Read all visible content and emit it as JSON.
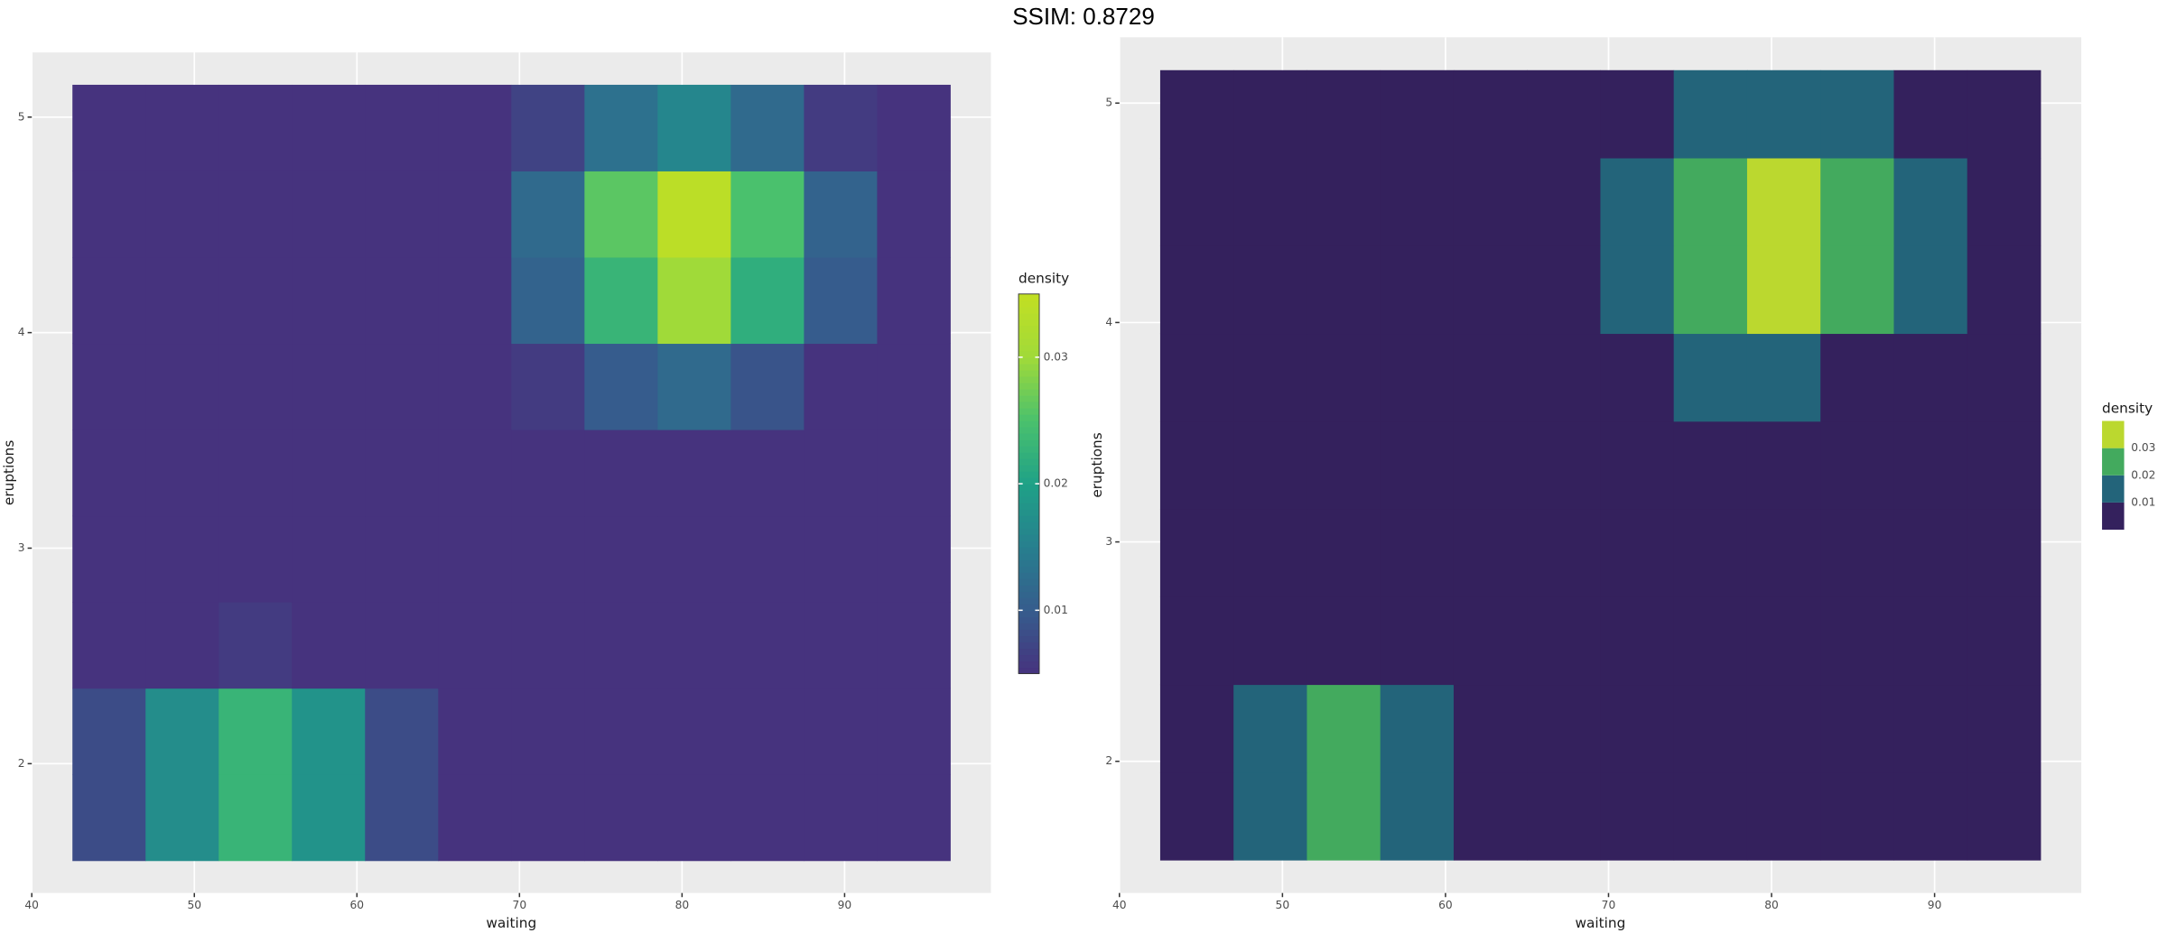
{
  "title": "SSIM: 0.8729",
  "chart_data": [
    {
      "type": "heatmap",
      "x_label": "waiting",
      "y_label": "eruptions",
      "legend_title": "density",
      "x": [
        44.75,
        49.25,
        53.75,
        58.25,
        62.75,
        67.25,
        71.75,
        76.25,
        80.75,
        85.25,
        89.75,
        94.25
      ],
      "y": [
        1.75,
        2.15,
        2.55,
        2.95,
        3.35,
        3.75,
        4.15,
        4.55,
        4.95
      ],
      "z": [
        [
          0.008,
          0.017,
          0.023,
          0.018,
          0.008,
          0.004,
          0.003,
          0.003,
          0.003,
          0.003,
          0.003,
          0.003
        ],
        [
          0.008,
          0.017,
          0.023,
          0.018,
          0.008,
          0.004,
          0.003,
          0.003,
          0.003,
          0.003,
          0.003,
          0.003
        ],
        [
          0.004,
          0.005,
          0.006,
          0.005,
          0.004,
          0.003,
          0.003,
          0.003,
          0.003,
          0.003,
          0.003,
          0.003
        ],
        [
          0.003,
          0.003,
          0.003,
          0.003,
          0.003,
          0.003,
          0.003,
          0.003,
          0.003,
          0.003,
          0.003,
          0.003
        ],
        [
          0.003,
          0.003,
          0.003,
          0.003,
          0.003,
          0.003,
          0.003,
          0.004,
          0.004,
          0.004,
          0.003,
          0.003
        ],
        [
          0.003,
          0.003,
          0.003,
          0.003,
          0.003,
          0.004,
          0.006,
          0.01,
          0.012,
          0.009,
          0.005,
          0.003
        ],
        [
          0.003,
          0.003,
          0.003,
          0.003,
          0.003,
          0.005,
          0.011,
          0.023,
          0.03,
          0.022,
          0.01,
          0.004
        ],
        [
          0.003,
          0.003,
          0.003,
          0.003,
          0.003,
          0.005,
          0.012,
          0.026,
          0.034,
          0.025,
          0.011,
          0.005
        ],
        [
          0.003,
          0.003,
          0.003,
          0.003,
          0.003,
          0.004,
          0.007,
          0.013,
          0.016,
          0.012,
          0.006,
          0.004
        ]
      ],
      "xlim": [
        40,
        99
      ],
      "ylim": [
        1.4,
        5.3
      ],
      "xticks": [
        40,
        50,
        60,
        70,
        80,
        90
      ],
      "yticks": [
        2,
        3,
        4,
        5
      ],
      "grid": true,
      "colorscale": "continuous",
      "colorlim": [
        0.005,
        0.035
      ],
      "colorticks": [
        0.01,
        0.02,
        0.03
      ],
      "palette": [
        "#46337e",
        "#365c8d",
        "#277f8e",
        "#1fa187",
        "#4ac16d",
        "#a0da39",
        "#c2df23"
      ]
    },
    {
      "type": "heatmap",
      "x_label": "waiting",
      "y_label": "eruptions",
      "legend_title": "density",
      "x": [
        44.75,
        49.25,
        53.75,
        58.25,
        62.75,
        67.25,
        71.75,
        76.25,
        80.75,
        85.25,
        89.75,
        94.25
      ],
      "y": [
        1.75,
        2.15,
        2.55,
        2.95,
        3.35,
        3.75,
        4.15,
        4.55,
        4.95
      ],
      "z": [
        [
          0.008,
          0.017,
          0.023,
          0.018,
          0.008,
          0.004,
          0.003,
          0.003,
          0.003,
          0.003,
          0.003,
          0.003
        ],
        [
          0.008,
          0.017,
          0.023,
          0.018,
          0.008,
          0.004,
          0.003,
          0.003,
          0.003,
          0.003,
          0.003,
          0.003
        ],
        [
          0.004,
          0.005,
          0.006,
          0.005,
          0.004,
          0.003,
          0.003,
          0.003,
          0.003,
          0.003,
          0.003,
          0.003
        ],
        [
          0.003,
          0.003,
          0.003,
          0.003,
          0.003,
          0.003,
          0.003,
          0.003,
          0.003,
          0.003,
          0.003,
          0.003
        ],
        [
          0.003,
          0.003,
          0.003,
          0.003,
          0.003,
          0.003,
          0.003,
          0.004,
          0.004,
          0.004,
          0.003,
          0.003
        ],
        [
          0.003,
          0.003,
          0.003,
          0.003,
          0.003,
          0.004,
          0.006,
          0.01,
          0.012,
          0.009,
          0.005,
          0.003
        ],
        [
          0.003,
          0.003,
          0.003,
          0.003,
          0.003,
          0.005,
          0.011,
          0.023,
          0.03,
          0.022,
          0.01,
          0.004
        ],
        [
          0.003,
          0.003,
          0.003,
          0.003,
          0.003,
          0.005,
          0.012,
          0.026,
          0.034,
          0.025,
          0.011,
          0.005
        ],
        [
          0.003,
          0.003,
          0.003,
          0.003,
          0.003,
          0.004,
          0.007,
          0.013,
          0.016,
          0.012,
          0.006,
          0.004
        ]
      ],
      "xlim": [
        40,
        99
      ],
      "ylim": [
        1.4,
        5.3
      ],
      "xticks": [
        40,
        50,
        60,
        70,
        80,
        90
      ],
      "yticks": [
        2,
        3,
        4,
        5
      ],
      "grid": true,
      "colorscale": "binned",
      "breaks": [
        0.01,
        0.02,
        0.03
      ],
      "palette": [
        "#34215d",
        "#23647a",
        "#43aa5e",
        "#bbd82f"
      ]
    }
  ]
}
